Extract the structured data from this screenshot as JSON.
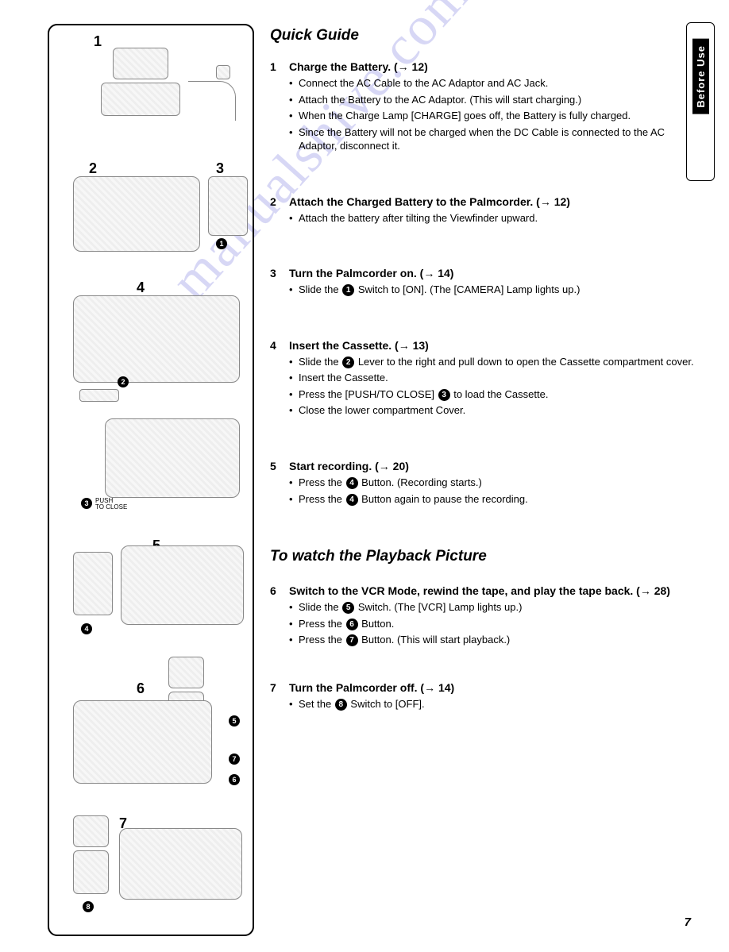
{
  "side_tab": "Before Use",
  "title1": "Quick Guide",
  "title2": "To watch the Playback Picture",
  "page_number": "7",
  "watermark": "manualshive.com",
  "diagram_numbers": [
    "1",
    "2",
    "3",
    "4",
    "5",
    "6",
    "7"
  ],
  "mini_circles": [
    "1",
    "2",
    "3",
    "4",
    "5",
    "6",
    "7",
    "8"
  ],
  "steps": [
    {
      "num": "1",
      "heading": "Charge the Battery. (→ 12)",
      "bullets": [
        "Connect the AC Cable to the AC Adaptor and AC Jack.",
        "Attach the Battery to the AC Adaptor.  (This will start charging.)",
        "When the Charge Lamp [CHARGE] goes off, the Battery is fully charged.",
        "Since the Battery will not be charged when the DC Cable is connected to the AC Adaptor, disconnect it."
      ]
    },
    {
      "num": "2",
      "heading": "Attach the Charged Battery to the Palmcorder. (→ 12)",
      "bullets": [
        "Attach the battery after tilting the Viewfinder upward."
      ]
    },
    {
      "num": "3",
      "heading": "Turn the Palmcorder on. (→ 14)",
      "bullets_html": [
        "Slide the <span class=\"circle-num\">1</span> Switch to [ON]. (The [CAMERA] Lamp lights up.)"
      ]
    },
    {
      "num": "4",
      "heading": "Insert the Cassette. (→ 13)",
      "bullets_html": [
        "Slide the <span class=\"circle-num\">2</span> Lever to the right and pull down to open the Cassette compartment cover.",
        "Insert the Cassette.",
        "Press the [PUSH/TO CLOSE] <span class=\"circle-num\">3</span> to load the Cassette.",
        "Close the lower compartment Cover."
      ]
    },
    {
      "num": "5",
      "heading": "Start recording. (→ 20)",
      "bullets_html": [
        "Press the <span class=\"circle-num\">4</span> Button. (Recording starts.)",
        "Press the <span class=\"circle-num\">4</span> Button again to pause the recording."
      ]
    },
    {
      "num": "6",
      "heading": "Switch to the VCR Mode, rewind the tape, and play the tape back. (→ 28)",
      "bullets_html": [
        "Slide the <span class=\"circle-num\">5</span> Switch. (The [VCR] Lamp lights up.)",
        "Press the <span class=\"circle-num\">6</span> Button.",
        "Press the <span class=\"circle-num\">7</span> Button. (This will start playback.)"
      ]
    },
    {
      "num": "7",
      "heading": "Turn the Palmcorder off. (→ 14)",
      "bullets_html": [
        "Set the <span class=\"circle-num\">8</span> Switch to [OFF]."
      ]
    }
  ]
}
